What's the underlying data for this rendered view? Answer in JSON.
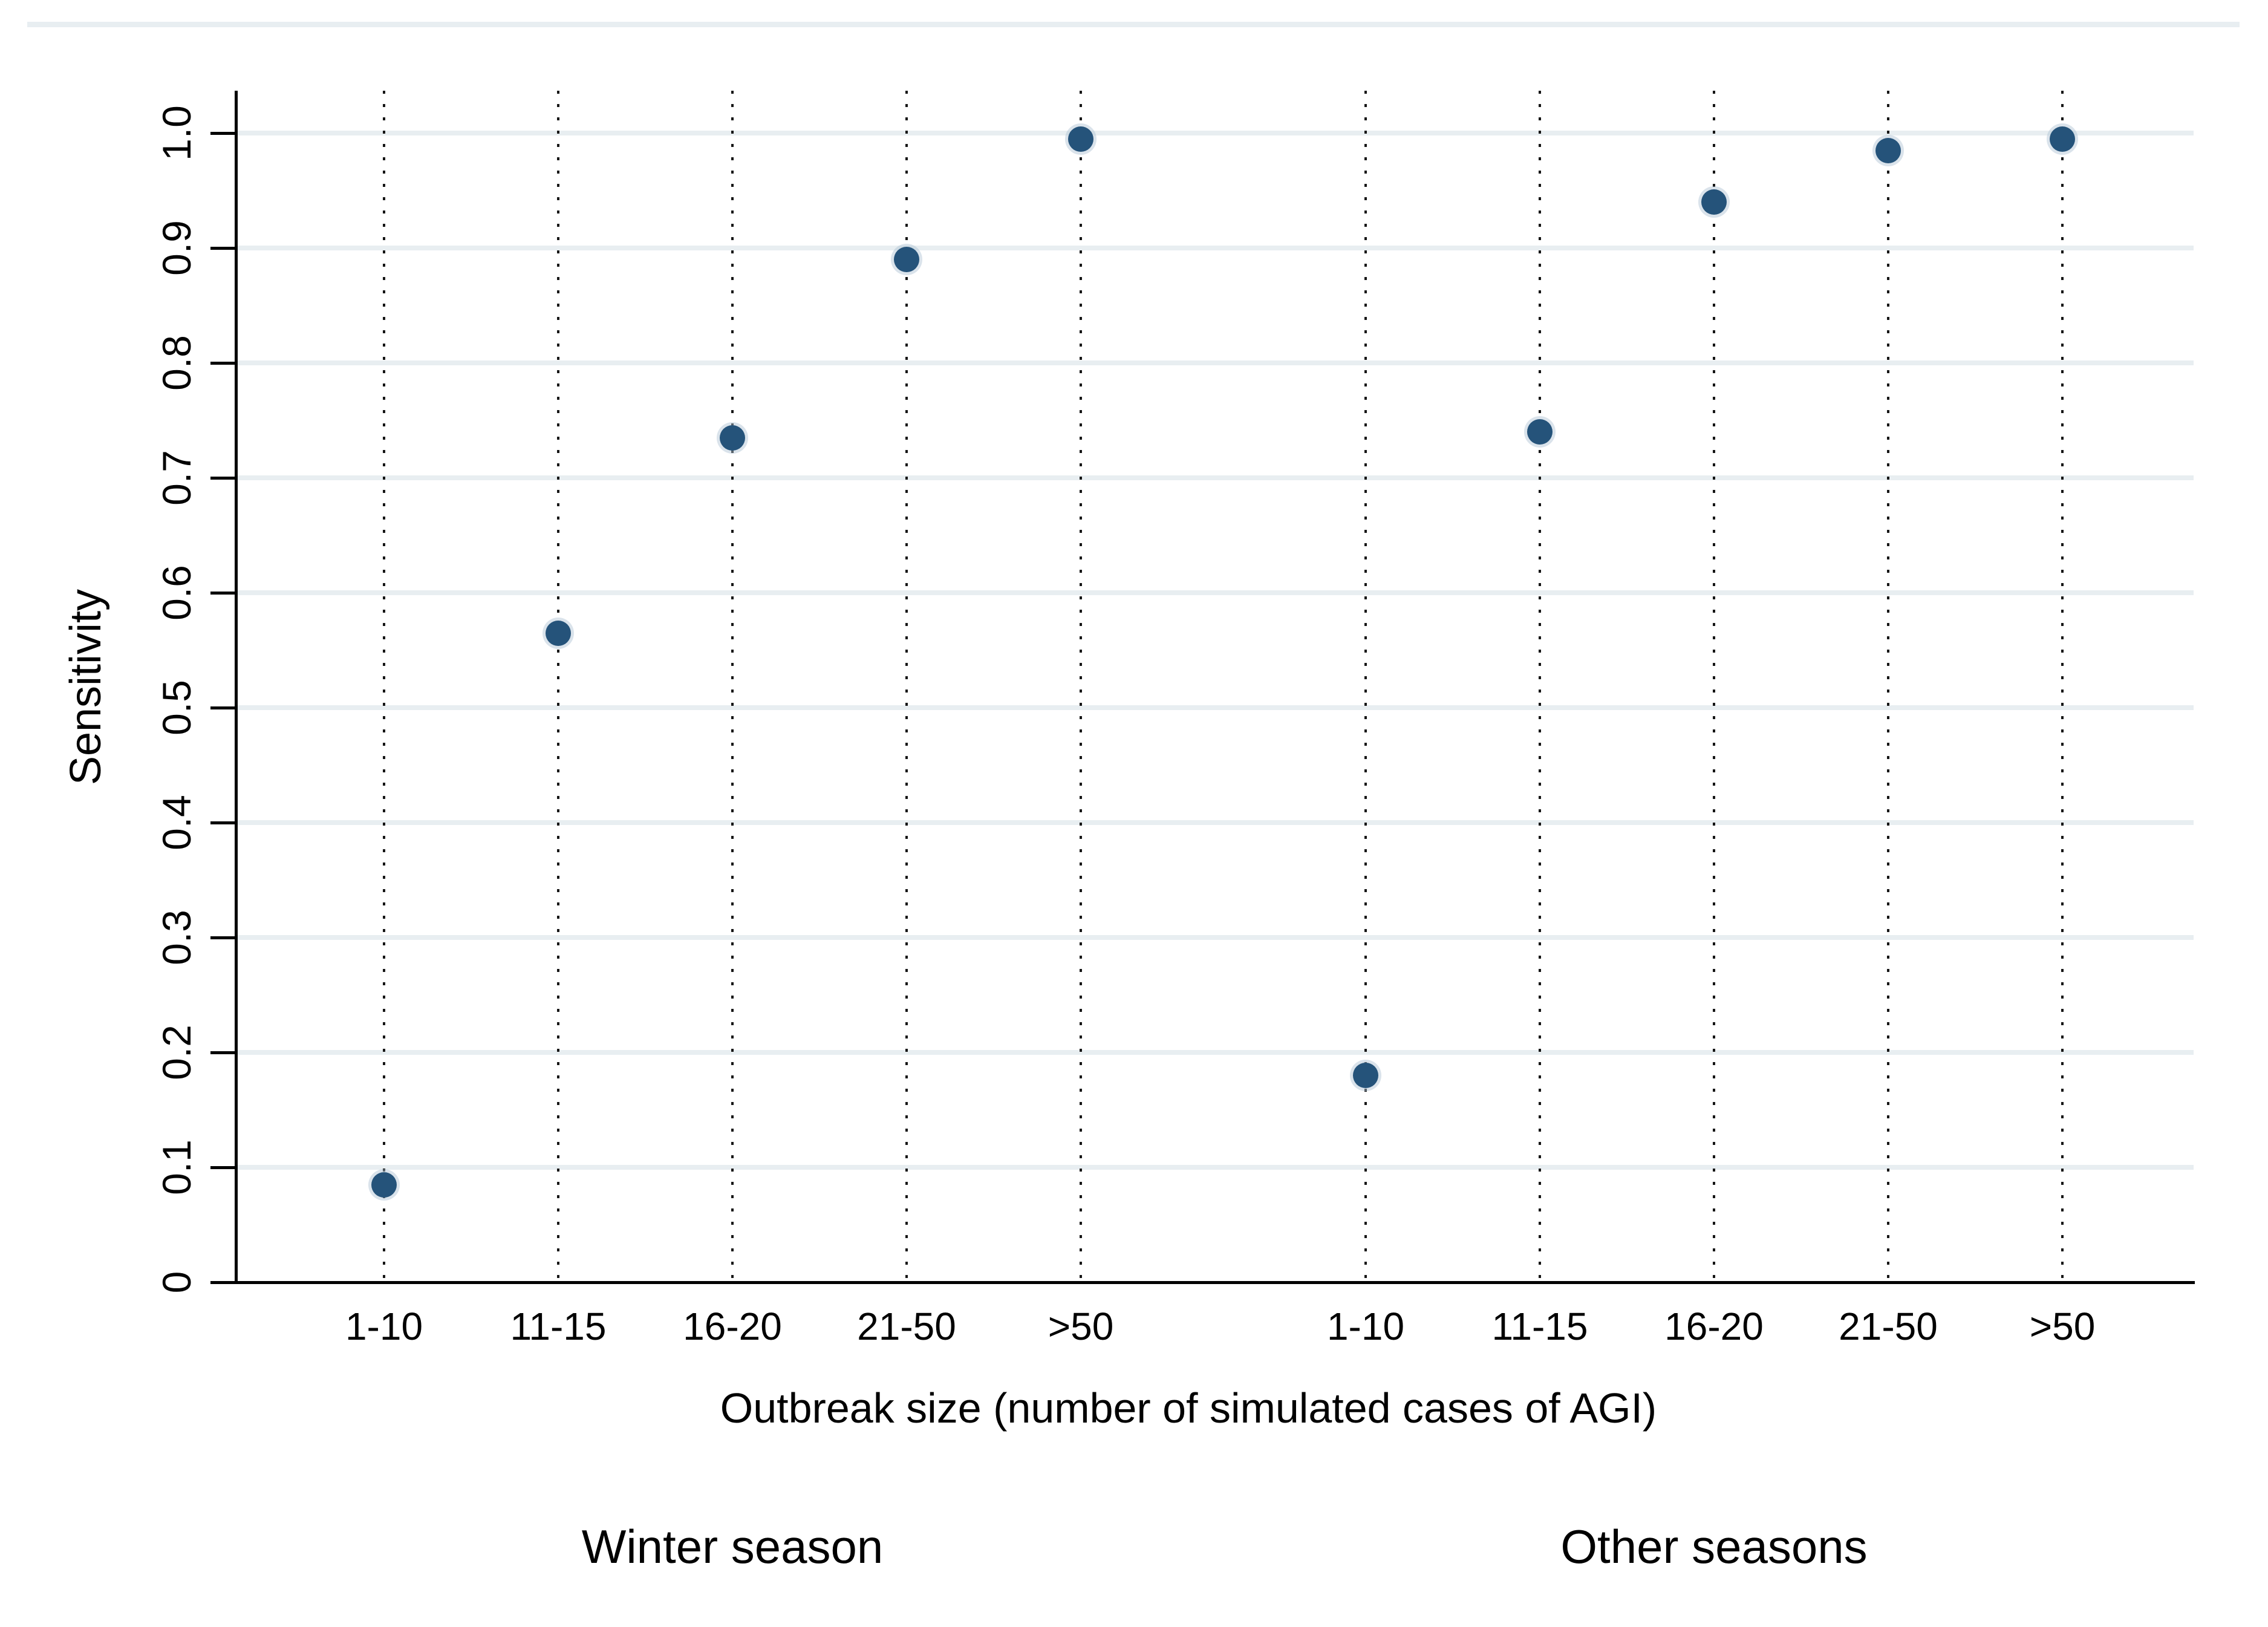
{
  "chart_data": {
    "type": "scatter",
    "title": "",
    "xlabel": "Outbreak size (number of simulated cases of AGI)",
    "ylabel": "Sensitivity",
    "ylim": [
      0,
      1.05
    ],
    "y_tick_labels": [
      "0",
      "0.1",
      "0.2",
      "0.3",
      "0.4",
      "0.5",
      "0.6",
      "0.7",
      "0.8",
      "0.9",
      "1.0"
    ],
    "y_tick_values": [
      0,
      0.1,
      0.2,
      0.3,
      0.4,
      0.5,
      0.6,
      0.7,
      0.8,
      0.9,
      1.0
    ],
    "categories": [
      "1-10",
      "11-15",
      "16-20",
      "21-50",
      ">50"
    ],
    "series": [
      {
        "name": "Winter season",
        "values": [
          0.085,
          0.565,
          0.735,
          0.89,
          0.995
        ]
      },
      {
        "name": "Other seasons",
        "values": [
          0.18,
          0.74,
          0.94,
          0.985,
          0.995
        ]
      }
    ],
    "grid": "horizontal solid pale lines at each y tick; vertical black dotted line at each category",
    "legend_position": "none",
    "marker_color": "#25537a",
    "marker_halo_color": "#adc2d3",
    "gridline_color": "#e8eef1",
    "axis_color": "#000000"
  }
}
